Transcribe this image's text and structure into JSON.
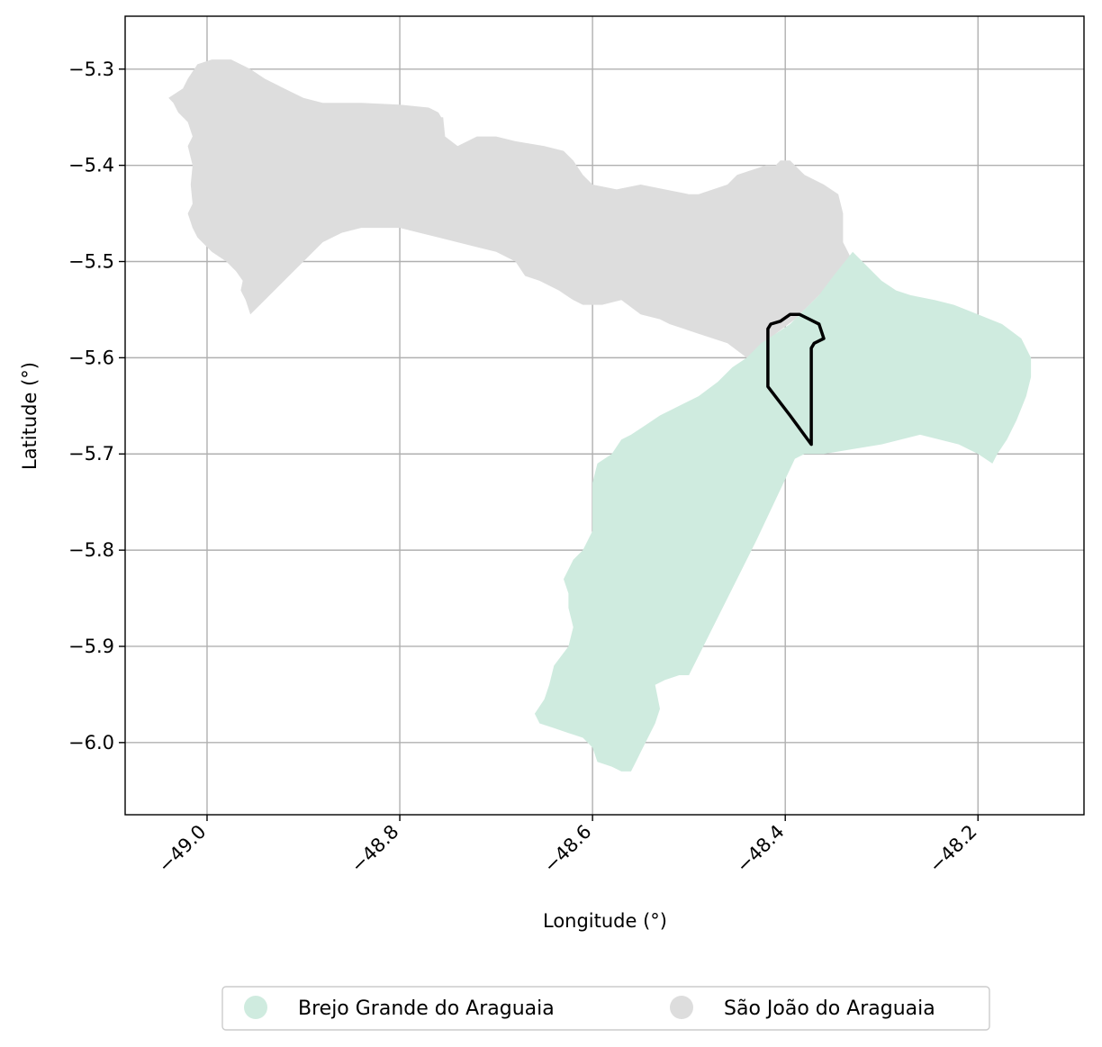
{
  "chart_data": {
    "type": "map",
    "xlabel": "Longitude (°)",
    "ylabel": "Latitude (°)",
    "xlim": [
      -49.085,
      -48.09
    ],
    "ylim": [
      -6.075,
      -5.245
    ],
    "x_ticks": [
      -49.0,
      -48.8,
      -48.6,
      -48.4,
      -48.2
    ],
    "x_tick_labels": [
      "−49.0",
      "−48.8",
      "−48.6",
      "−48.4",
      "−48.2"
    ],
    "y_ticks": [
      -5.3,
      -5.4,
      -5.5,
      -5.6,
      -5.7,
      -5.8,
      -5.9,
      -6.0
    ],
    "y_tick_labels": [
      "−5.3",
      "−5.4",
      "−5.5",
      "−5.6",
      "−5.7",
      "−5.8",
      "−5.9",
      "−6.0"
    ],
    "grid": true,
    "legend_position": "bottom-center",
    "legend": [
      {
        "label": "Brejo Grande do Araguaia",
        "color": "#cfebdf"
      },
      {
        "label": "São João do Araguaia",
        "color": "#dddddd"
      }
    ],
    "regions": [
      {
        "name": "São João do Araguaia",
        "color": "#dddddd",
        "coords": [
          [
            -49.04,
            -5.33
          ],
          [
            -49.025,
            -5.32
          ],
          [
            -49.02,
            -5.31
          ],
          [
            -49.01,
            -5.295
          ],
          [
            -48.995,
            -5.29
          ],
          [
            -48.975,
            -5.29
          ],
          [
            -48.955,
            -5.3
          ],
          [
            -48.94,
            -5.31
          ],
          [
            -48.92,
            -5.32
          ],
          [
            -48.9,
            -5.33
          ],
          [
            -48.88,
            -5.335
          ],
          [
            -48.84,
            -5.335
          ],
          [
            -48.8,
            -5.337
          ],
          [
            -48.77,
            -5.34
          ],
          [
            -48.76,
            -5.345
          ],
          [
            -48.757,
            -5.35
          ],
          [
            -48.755,
            -5.35
          ],
          [
            -48.753,
            -5.37
          ],
          [
            -48.74,
            -5.38
          ],
          [
            -48.72,
            -5.37
          ],
          [
            -48.7,
            -5.37
          ],
          [
            -48.68,
            -5.375
          ],
          [
            -48.65,
            -5.38
          ],
          [
            -48.63,
            -5.385
          ],
          [
            -48.62,
            -5.395
          ],
          [
            -48.61,
            -5.41
          ],
          [
            -48.6,
            -5.42
          ],
          [
            -48.575,
            -5.425
          ],
          [
            -48.55,
            -5.42
          ],
          [
            -48.525,
            -5.425
          ],
          [
            -48.5,
            -5.43
          ],
          [
            -48.49,
            -5.43
          ],
          [
            -48.475,
            -5.425
          ],
          [
            -48.46,
            -5.42
          ],
          [
            -48.45,
            -5.41
          ],
          [
            -48.42,
            -5.4
          ],
          [
            -48.41,
            -5.4
          ],
          [
            -48.405,
            -5.395
          ],
          [
            -48.395,
            -5.395
          ],
          [
            -48.39,
            -5.4
          ],
          [
            -48.38,
            -5.41
          ],
          [
            -48.36,
            -5.42
          ],
          [
            -48.345,
            -5.43
          ],
          [
            -48.34,
            -5.45
          ],
          [
            -48.34,
            -5.48
          ],
          [
            -48.335,
            -5.49
          ],
          [
            -48.33,
            -5.5
          ],
          [
            -48.34,
            -5.51
          ],
          [
            -48.355,
            -5.525
          ],
          [
            -48.37,
            -5.54
          ],
          [
            -48.39,
            -5.56
          ],
          [
            -48.41,
            -5.575
          ],
          [
            -48.425,
            -5.59
          ],
          [
            -48.44,
            -5.6
          ],
          [
            -48.46,
            -5.585
          ],
          [
            -48.49,
            -5.575
          ],
          [
            -48.52,
            -5.565
          ],
          [
            -48.53,
            -5.56
          ],
          [
            -48.55,
            -5.555
          ],
          [
            -48.57,
            -5.54
          ],
          [
            -48.59,
            -5.545
          ],
          [
            -48.61,
            -5.545
          ],
          [
            -48.62,
            -5.54
          ],
          [
            -48.635,
            -5.53
          ],
          [
            -48.655,
            -5.52
          ],
          [
            -48.67,
            -5.515
          ],
          [
            -48.68,
            -5.5
          ],
          [
            -48.7,
            -5.49
          ],
          [
            -48.72,
            -5.485
          ],
          [
            -48.74,
            -5.48
          ],
          [
            -48.76,
            -5.475
          ],
          [
            -48.78,
            -5.47
          ],
          [
            -48.8,
            -5.465
          ],
          [
            -48.84,
            -5.465
          ],
          [
            -48.86,
            -5.47
          ],
          [
            -48.88,
            -5.48
          ],
          [
            -48.9,
            -5.5
          ],
          [
            -48.92,
            -5.52
          ],
          [
            -48.94,
            -5.54
          ],
          [
            -48.955,
            -5.555
          ],
          [
            -48.96,
            -5.54
          ],
          [
            -48.965,
            -5.53
          ],
          [
            -48.963,
            -5.52
          ],
          [
            -48.97,
            -5.51
          ],
          [
            -48.98,
            -5.5
          ],
          [
            -48.995,
            -5.49
          ],
          [
            -49.01,
            -5.475
          ],
          [
            -49.015,
            -5.465
          ],
          [
            -49.02,
            -5.45
          ],
          [
            -49.015,
            -5.44
          ],
          [
            -49.017,
            -5.42
          ],
          [
            -49.015,
            -5.4
          ],
          [
            -49.02,
            -5.38
          ],
          [
            -49.015,
            -5.37
          ],
          [
            -49.02,
            -5.355
          ],
          [
            -49.03,
            -5.345
          ],
          [
            -49.035,
            -5.335
          ],
          [
            -49.04,
            -5.33
          ]
        ]
      },
      {
        "name": "Brejo Grande do Araguaia",
        "color": "#cfebdf",
        "coords": [
          [
            -48.33,
            -5.49
          ],
          [
            -48.315,
            -5.505
          ],
          [
            -48.3,
            -5.52
          ],
          [
            -48.285,
            -5.53
          ],
          [
            -48.27,
            -5.535
          ],
          [
            -48.245,
            -5.54
          ],
          [
            -48.225,
            -5.545
          ],
          [
            -48.2,
            -5.555
          ],
          [
            -48.175,
            -5.565
          ],
          [
            -48.155,
            -5.58
          ],
          [
            -48.145,
            -5.6
          ],
          [
            -48.145,
            -5.62
          ],
          [
            -48.15,
            -5.64
          ],
          [
            -48.16,
            -5.665
          ],
          [
            -48.17,
            -5.685
          ],
          [
            -48.18,
            -5.7
          ],
          [
            -48.185,
            -5.71
          ],
          [
            -48.2,
            -5.7
          ],
          [
            -48.22,
            -5.69
          ],
          [
            -48.24,
            -5.685
          ],
          [
            -48.26,
            -5.68
          ],
          [
            -48.28,
            -5.685
          ],
          [
            -48.3,
            -5.69
          ],
          [
            -48.33,
            -5.695
          ],
          [
            -48.36,
            -5.7
          ],
          [
            -48.38,
            -5.7
          ],
          [
            -48.39,
            -5.705
          ],
          [
            -48.43,
            -5.79
          ],
          [
            -48.47,
            -5.87
          ],
          [
            -48.5,
            -5.93
          ],
          [
            -48.51,
            -5.93
          ],
          [
            -48.525,
            -5.935
          ],
          [
            -48.535,
            -5.94
          ],
          [
            -48.53,
            -5.965
          ],
          [
            -48.535,
            -5.98
          ],
          [
            -48.54,
            -5.99
          ],
          [
            -48.545,
            -6.0
          ],
          [
            -48.55,
            -6.01
          ],
          [
            -48.555,
            -6.02
          ],
          [
            -48.56,
            -6.03
          ],
          [
            -48.57,
            -6.03
          ],
          [
            -48.58,
            -6.025
          ],
          [
            -48.595,
            -6.02
          ],
          [
            -48.6,
            -6.005
          ],
          [
            -48.61,
            -5.995
          ],
          [
            -48.625,
            -5.99
          ],
          [
            -48.64,
            -5.985
          ],
          [
            -48.655,
            -5.98
          ],
          [
            -48.66,
            -5.97
          ],
          [
            -48.65,
            -5.955
          ],
          [
            -48.645,
            -5.94
          ],
          [
            -48.64,
            -5.92
          ],
          [
            -48.625,
            -5.9
          ],
          [
            -48.62,
            -5.88
          ],
          [
            -48.625,
            -5.86
          ],
          [
            -48.625,
            -5.845
          ],
          [
            -48.63,
            -5.83
          ],
          [
            -48.62,
            -5.81
          ],
          [
            -48.61,
            -5.8
          ],
          [
            -48.605,
            -5.79
          ],
          [
            -48.6,
            -5.78
          ],
          [
            -48.6,
            -5.76
          ],
          [
            -48.6,
            -5.73
          ],
          [
            -48.595,
            -5.71
          ],
          [
            -48.58,
            -5.7
          ],
          [
            -48.57,
            -5.685
          ],
          [
            -48.56,
            -5.68
          ],
          [
            -48.545,
            -5.67
          ],
          [
            -48.53,
            -5.66
          ],
          [
            -48.51,
            -5.65
          ],
          [
            -48.49,
            -5.64
          ],
          [
            -48.47,
            -5.625
          ],
          [
            -48.455,
            -5.61
          ],
          [
            -48.44,
            -5.6
          ],
          [
            -48.425,
            -5.585
          ],
          [
            -48.41,
            -5.575
          ],
          [
            -48.395,
            -5.565
          ],
          [
            -48.38,
            -5.55
          ],
          [
            -48.365,
            -5.535
          ],
          [
            -48.35,
            -5.515
          ],
          [
            -48.33,
            -5.49
          ]
        ]
      }
    ],
    "outline": {
      "color": "#000000",
      "coords": [
        [
          -48.415,
          -5.565
        ],
        [
          -48.405,
          -5.562
        ],
        [
          -48.395,
          -5.555
        ],
        [
          -48.385,
          -5.555
        ],
        [
          -48.375,
          -5.56
        ],
        [
          -48.365,
          -5.565
        ],
        [
          -48.36,
          -5.58
        ],
        [
          -48.37,
          -5.585
        ],
        [
          -48.373,
          -5.59
        ],
        [
          -48.373,
          -5.69
        ],
        [
          -48.395,
          -5.66
        ],
        [
          -48.418,
          -5.63
        ],
        [
          -48.418,
          -5.57
        ],
        [
          -48.415,
          -5.565
        ]
      ]
    }
  }
}
